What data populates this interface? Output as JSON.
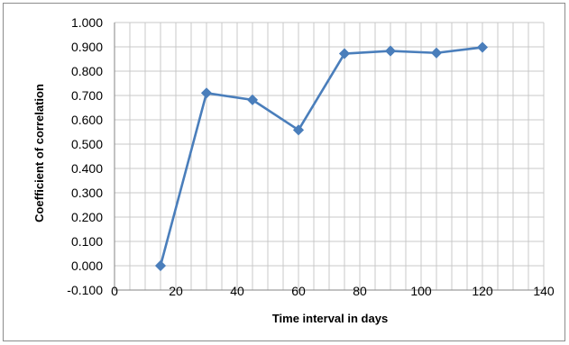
{
  "chart_data": {
    "type": "line",
    "title": "",
    "xlabel": "Time interval in days",
    "ylabel": "Coefficient of correlation",
    "xlim": [
      0,
      140
    ],
    "ylim": [
      -0.1,
      1.0
    ],
    "x_ticks": [
      "0",
      "20",
      "40",
      "60",
      "80",
      "100",
      "120",
      "140"
    ],
    "y_ticks": [
      "-0.100",
      "0.000",
      "0.100",
      "0.200",
      "0.300",
      "0.400",
      "0.500",
      "0.600",
      "0.700",
      "0.800",
      "0.900",
      "1.000"
    ],
    "grid": true,
    "legend": "none",
    "series": [
      {
        "x": [
          15,
          30,
          45,
          60,
          75,
          90,
          105,
          120
        ],
        "y": [
          0.0,
          0.71,
          0.682,
          0.558,
          0.872,
          0.883,
          0.875,
          0.898
        ],
        "color": "#4a7ebb",
        "marker": "diamond"
      }
    ]
  }
}
